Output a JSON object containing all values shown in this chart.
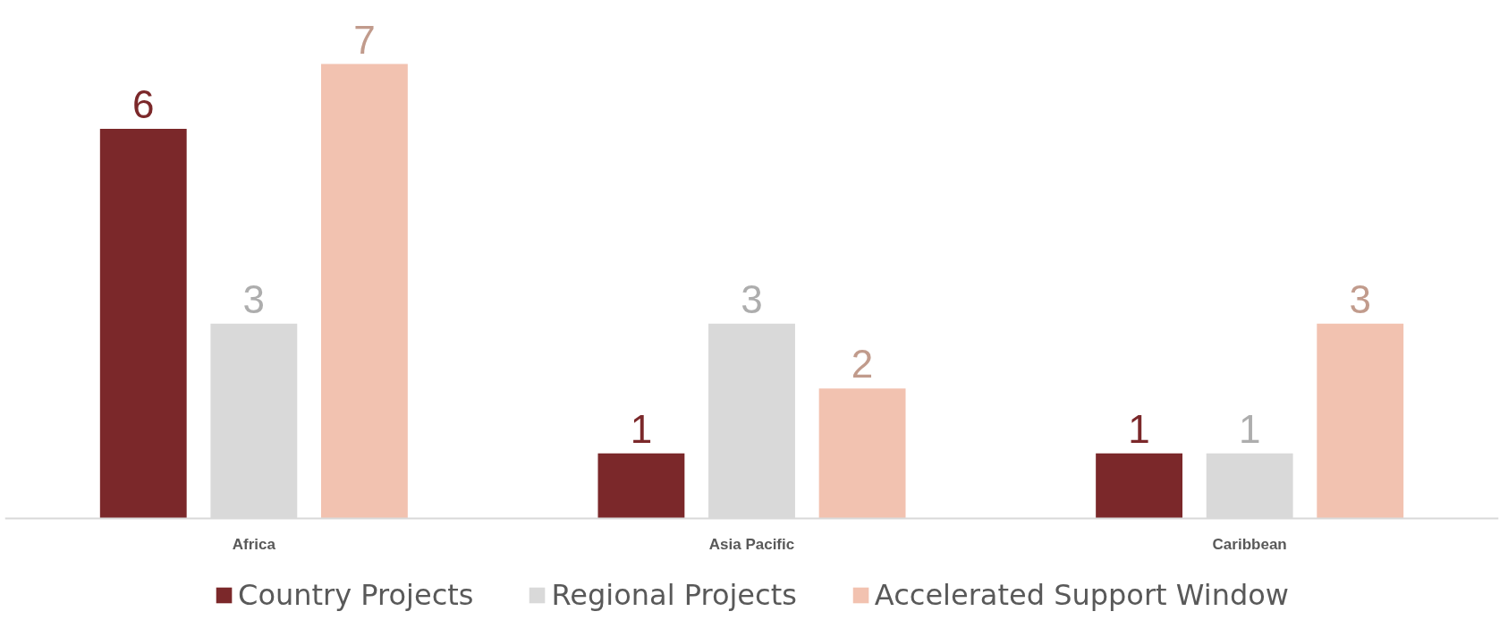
{
  "chart_data": {
    "type": "bar",
    "categories": [
      "Africa",
      "Asia Pacific",
      "Caribbean"
    ],
    "series": [
      {
        "name": "Country Projects",
        "color": "#7b282a",
        "values": [
          6,
          1,
          1
        ]
      },
      {
        "name": "Regional Projects",
        "color": "#d9d9d9",
        "values": [
          3,
          3,
          1
        ]
      },
      {
        "name": "Accelerated Support Window",
        "color": "#f2c2b0",
        "values": [
          7,
          2,
          3
        ]
      }
    ],
    "data_labels": true,
    "legend": "bottom",
    "grid": false,
    "tick_labels": "x"
  }
}
